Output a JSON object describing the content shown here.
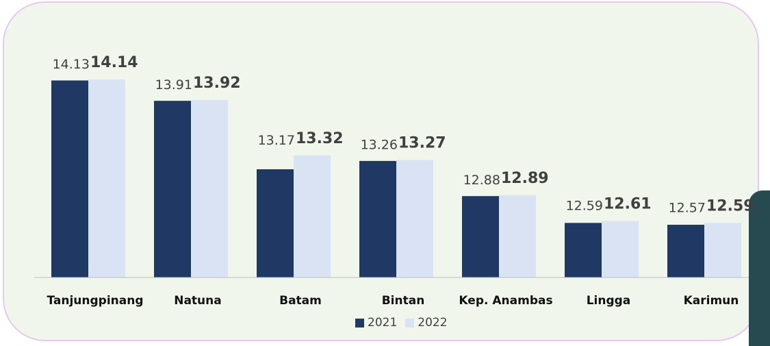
{
  "chart_data": {
    "type": "bar",
    "categories": [
      "Tanjungpinang",
      "Natuna",
      "Batam",
      "Bintan",
      "Kep. Anambas",
      "Lingga",
      "Karimun"
    ],
    "series": [
      {
        "name": "2021",
        "color": "#203864",
        "values": [
          14.13,
          13.91,
          13.17,
          13.26,
          12.88,
          12.59,
          12.57
        ],
        "labels": [
          "14.13",
          "13.91",
          "13.17",
          "13.26",
          "12.88",
          "12.59",
          "12.57"
        ]
      },
      {
        "name": "2022",
        "color": "#dae3f3",
        "values": [
          14.14,
          13.92,
          13.32,
          13.27,
          12.89,
          12.61,
          12.59
        ],
        "labels": [
          "14.14",
          "13.92",
          "13.32",
          "13.27",
          "12.89",
          "12.61",
          "12.59"
        ]
      }
    ],
    "ylim": [
      12.0,
      14.4
    ],
    "grid": false,
    "legend_position": "bottom"
  },
  "colors": {
    "background": "#f1f6ec",
    "border": "#e8c8ee",
    "side_tab": "#264a50",
    "axis_line": "#bfbfbf"
  }
}
